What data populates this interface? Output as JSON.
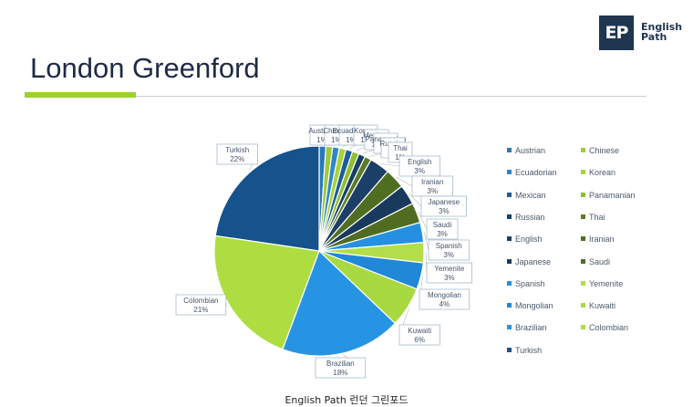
{
  "header": {
    "title": "London Greenford"
  },
  "logo": {
    "mark": "EP",
    "line1": "English",
    "line2": "Path"
  },
  "caption": "English Path 런던 그린포드",
  "colors": {
    "accent_green": "#9ed02c",
    "rule_gray": "#cfcfcf",
    "title": "#1f2a44",
    "logo_bg": "#1f3550"
  },
  "chart_data": {
    "type": "pie",
    "start": "12 o'clock, clockwise",
    "slices": [
      {
        "label": "Austrian",
        "value": 1,
        "display": "1%",
        "color": "#2a78b9"
      },
      {
        "label": "Chinese",
        "value": 1,
        "display": "1%",
        "color": "#9ec93a"
      },
      {
        "label": "Ecuadorian",
        "value": 1,
        "display": "1%",
        "color": "#2f86c7"
      },
      {
        "label": "Korean",
        "value": 1,
        "display": "1%",
        "color": "#a8d23c"
      },
      {
        "label": "Mexican",
        "value": 1,
        "display": "1%",
        "color": "#1b5d96"
      },
      {
        "label": "Panamanian",
        "value": 1,
        "display": "1%",
        "color": "#8fbd33"
      },
      {
        "label": "Russian",
        "value": 1,
        "display": "1%",
        "color": "#173f63"
      },
      {
        "label": "Thai",
        "value": 1,
        "display": "1%",
        "color": "#5d7c27"
      },
      {
        "label": "English",
        "value": 3,
        "display": "3%",
        "color": "#1b3f66"
      },
      {
        "label": "Iranian",
        "value": 3,
        "display": "3%",
        "color": "#506e22"
      },
      {
        "label": "Japanese",
        "value": 3,
        "display": "3%",
        "color": "#193a5d"
      },
      {
        "label": "Saudi",
        "value": 3,
        "display": "3%",
        "color": "#4f6c21"
      },
      {
        "label": "Spanish",
        "value": 3,
        "display": "3%",
        "color": "#2590e0"
      },
      {
        "label": "Yemenite",
        "value": 3,
        "display": "3%",
        "color": "#b3dd4a"
      },
      {
        "label": "Mongolian",
        "value": 4,
        "display": "4%",
        "color": "#2188d8"
      },
      {
        "label": "Kuwaiti",
        "value": 6,
        "display": "6%",
        "color": "#a8d940"
      },
      {
        "label": "Brazilian",
        "value": 18,
        "display": "18%",
        "color": "#2694e3"
      },
      {
        "label": "Colombian",
        "value": 21,
        "display": "21%",
        "color": "#addd41"
      },
      {
        "label": "Turkish",
        "value": 22,
        "display": "22%",
        "color": "#16528c"
      }
    ],
    "legend_placement": "right",
    "data_labels": "callouts with category name and percent"
  }
}
